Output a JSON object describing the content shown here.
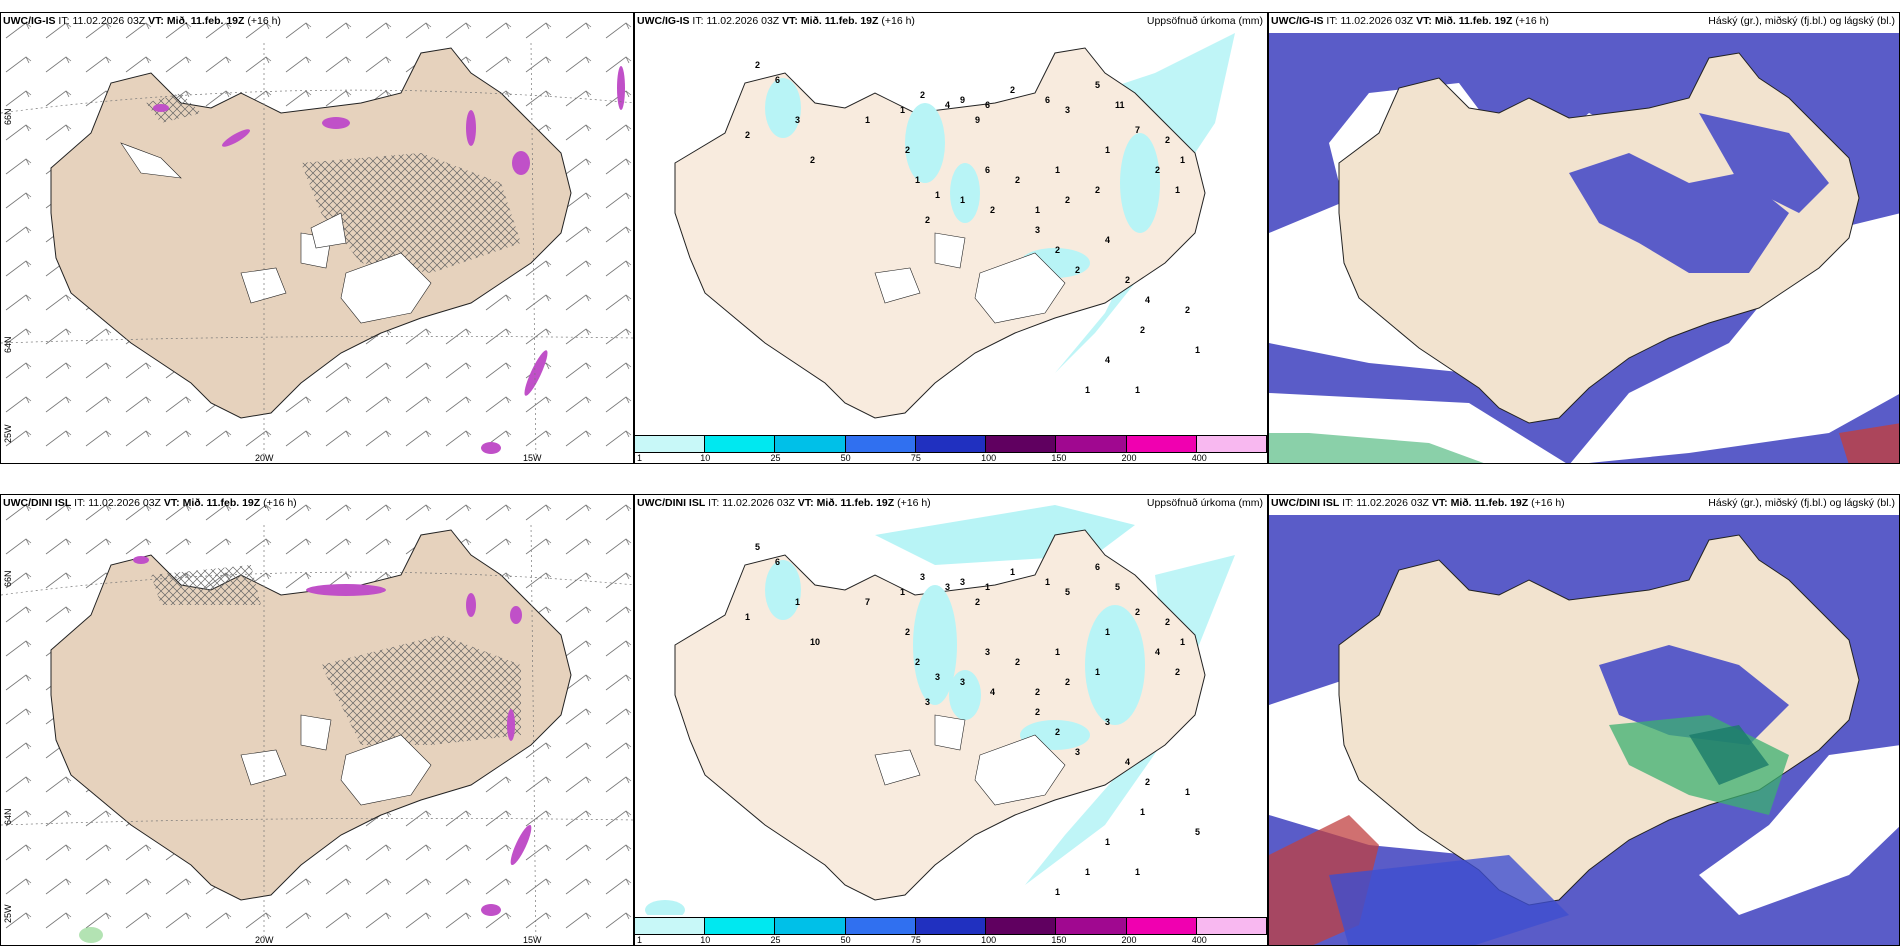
{
  "colors": {
    "land": "#f2e3cf",
    "land_left": "#e6d2bd",
    "overcast_blue": "#5a5cc8",
    "precip_light": "#b8f4f6",
    "accent_purple": "#c050c8",
    "green_cloud": "#3cb070",
    "red_cloud": "#c04040"
  },
  "rows": [
    {
      "model": "UWC/IG-IS",
      "it_label": "IT:",
      "it_value": "11.02.2026 03Z",
      "vt_label": "VT:",
      "vt_value": "Mið. 11.feb. 19Z",
      "lead": "(+16 h)"
    },
    {
      "model": "UWC/DINI ISL",
      "it_label": "IT:",
      "it_value": "11.02.2026 03Z",
      "vt_label": "VT:",
      "vt_value": "Mið. 11.feb. 19Z",
      "lead": "(+16 h)"
    }
  ],
  "panels": {
    "precip_title": "Uppsöfnuð úrkoma (mm)",
    "cloud_title": "Háský (gr.), miðský (fj.bl.) og lágský (bl.)"
  },
  "axis_labels": {
    "lon_20w": "20W",
    "lon_15w": "15W",
    "lat_66n": "66N",
    "lat_64n": "64N",
    "lat_25w": "25W"
  },
  "colorbar": {
    "ticks": [
      "1",
      "10",
      "25",
      "50",
      "75",
      "100",
      "150",
      "200",
      "400"
    ],
    "colors": [
      "#c8f8f8",
      "#00e8f0",
      "#00c0e8",
      "#3070f0",
      "#2030c0",
      "#600060",
      "#a00890",
      "#f000b0",
      "#f8b8f0"
    ]
  },
  "precip_numbers_top": [
    "2",
    "6",
    "3",
    "2",
    "2",
    "1",
    "1",
    "2",
    "4",
    "9",
    "9",
    "6",
    "2",
    "6",
    "3",
    "5",
    "11",
    "7",
    "2",
    "2",
    "1",
    "1",
    "1",
    "2",
    "1",
    "2",
    "2",
    "1",
    "6",
    "2",
    "1",
    "1",
    "2",
    "1",
    "2",
    "3",
    "2",
    "2",
    "4",
    "2",
    "4",
    "2",
    "4",
    "1",
    "1",
    "2",
    "1"
  ],
  "precip_numbers_bottom": [
    "5",
    "6",
    "1",
    "1",
    "10",
    "7",
    "1",
    "3",
    "3",
    "3",
    "2",
    "1",
    "1",
    "1",
    "5",
    "6",
    "5",
    "2",
    "4",
    "2",
    "1",
    "2",
    "1",
    "1",
    "1",
    "2",
    "2",
    "2",
    "3",
    "4",
    "3",
    "3",
    "2",
    "2",
    "3",
    "2",
    "2",
    "3",
    "3",
    "4",
    "2",
    "1",
    "1",
    "1",
    "1",
    "1",
    "5",
    "1"
  ]
}
